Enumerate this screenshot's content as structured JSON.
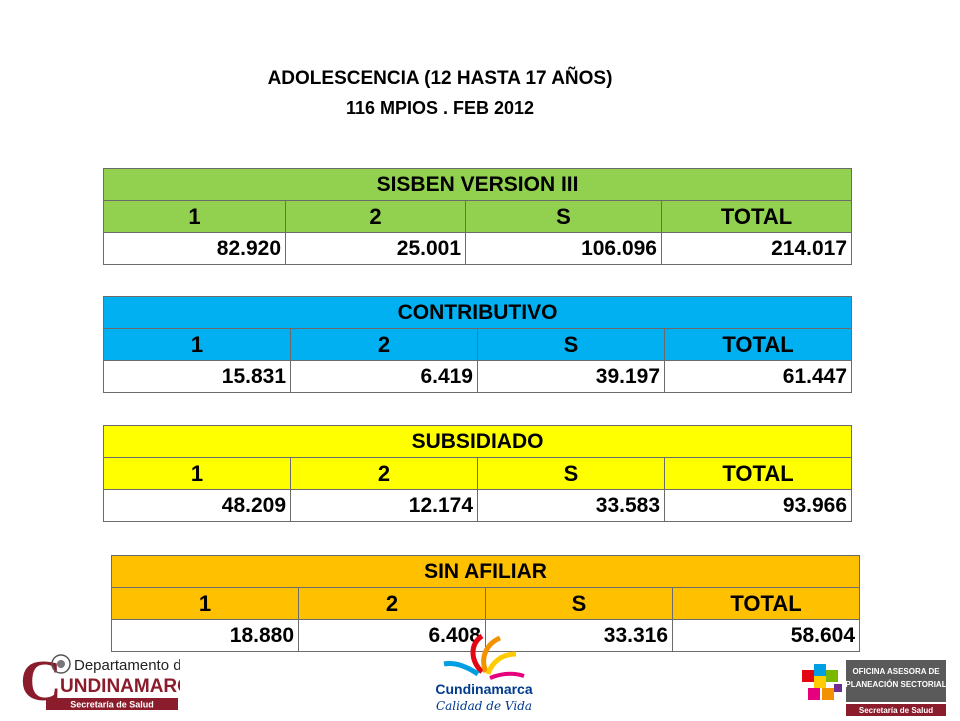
{
  "title": {
    "line1": "ADOLESCENCIA (12 HASTA 17 AÑOS)",
    "line2": "116 MPIOS . FEB 2012"
  },
  "tables": {
    "sisben": {
      "header": "SISBEN VERSION III",
      "columns": [
        "1",
        "2",
        "S",
        "TOTAL"
      ],
      "values": [
        "82.920",
        "25.001",
        "106.096",
        "214.017"
      ],
      "color": "#92d050"
    },
    "contributivo": {
      "header": "CONTRIBUTIVO",
      "columns": [
        "1",
        "2",
        "S",
        "TOTAL"
      ],
      "values": [
        "15.831",
        "6.419",
        "39.197",
        "61.447"
      ],
      "color": "#00b0f0"
    },
    "subsidiado": {
      "header": "SUBSIDIADO",
      "columns": [
        "1",
        "2",
        "S",
        "TOTAL"
      ],
      "values": [
        "48.209",
        "12.174",
        "33.583",
        "93.966"
      ],
      "color": "#ffff00"
    },
    "sin_afiliar": {
      "header": "SIN AFILIAR",
      "columns": [
        "1",
        "2",
        "S",
        "TOTAL"
      ],
      "values": [
        "18.880",
        "6.408",
        "33.316",
        "58.604"
      ],
      "color": "#ffc000"
    }
  },
  "logos": {
    "left": {
      "big_letter": "C",
      "line1": "Departamento de",
      "line2": "UNDINAMARCA",
      "line3": "Secretaría de Salud",
      "color": "#8b1c2c"
    },
    "center": {
      "name": "Cundinamarca",
      "tagline": "Calidad de Vida"
    },
    "right": {
      "line1": "OFICINA ASESORA DE",
      "line2": "PLANEACIÓN SECTORIAL",
      "line3": "Secretaría de Salud"
    }
  }
}
